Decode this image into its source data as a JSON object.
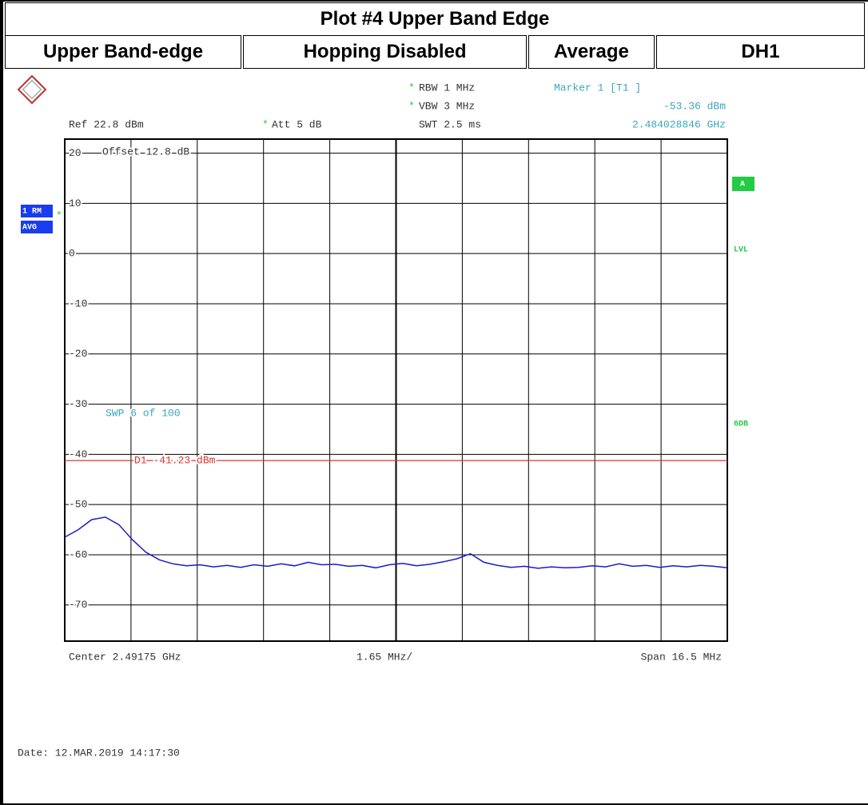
{
  "table": {
    "title": "Plot #4 Upper Band Edge",
    "headers": [
      "Upper Band-edge",
      "Hopping Disabled",
      "Average",
      "DH1"
    ]
  },
  "chart_data": {
    "type": "line",
    "ref": "Ref  22.8 dBm",
    "att": "Att  5 dB",
    "rbw": "RBW  1 MHz",
    "vbw": "VBW  3 MHz",
    "swt": "SWT  2.5 ms",
    "marker_title": "Marker 1 [T1 ]",
    "marker_level": "-53.36 dBm",
    "marker_freq": "2.484028846 GHz",
    "offset": "Offset  12.8 dB",
    "sweep": "SWP    6 of   100",
    "center": "Center 2.49175 GHz",
    "per_div": "1.65 MHz/",
    "span": "Span 16.5 MHz",
    "side_labels": [
      "1 RM",
      "AVG"
    ],
    "right_labels": [
      "A",
      "LVL",
      "6DB"
    ],
    "date": "Date: 12.MAR.2019  14:17:30",
    "display_line": {
      "label": "D1 -41.23 dBm",
      "value": -41.23,
      "color": "#e03030"
    },
    "ylim": [
      -77.2,
      22.8
    ],
    "yticks": [
      20,
      10,
      0,
      -10,
      -20,
      -30,
      -40,
      -50,
      -60,
      -70
    ],
    "grid": true,
    "series": [
      {
        "color": "#1a1acc",
        "values": [
          -56.5,
          -55,
          -53,
          -52.5,
          -54,
          -57,
          -59.5,
          -61,
          -61.8,
          -62.2,
          -62,
          -62.4,
          -62.1,
          -62.5,
          -62,
          -62.3,
          -61.8,
          -62.2,
          -61.5,
          -62,
          -61.9,
          -62.3,
          -62.1,
          -62.6,
          -62,
          -61.7,
          -62.2,
          -61.9,
          -61.4,
          -60.8,
          -59.8,
          -61.5,
          -62.1,
          -62.5,
          -62.3,
          -62.7,
          -62.4,
          -62.6,
          -62.5,
          -62.2,
          -62.4,
          -61.8,
          -62.3,
          -62.1,
          -62.5,
          -62.2,
          -62.4,
          -62.1,
          -62.3,
          -62.6
        ]
      }
    ]
  }
}
